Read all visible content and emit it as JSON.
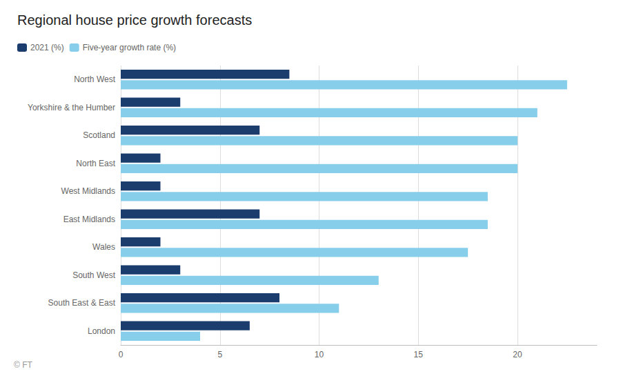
{
  "chart_data": {
    "type": "bar",
    "orientation": "horizontal",
    "title": "Regional house price growth forecasts",
    "categories": [
      "North West",
      "Yorkshire & the Humber",
      "Scotland",
      "North East",
      "West Midlands",
      "East Midlands",
      "Wales",
      "South West",
      "South East & East",
      "London"
    ],
    "series": [
      {
        "name": "2021 (%)",
        "color": "#1b3d6e",
        "values": [
          8.5,
          3.0,
          7.0,
          2.0,
          2.0,
          7.0,
          2.0,
          3.0,
          8.0,
          6.5
        ]
      },
      {
        "name": "Five-year growth rate (%)",
        "color": "#87ceeb",
        "values": [
          22.5,
          21.0,
          20.0,
          20.0,
          18.5,
          18.5,
          17.5,
          13.0,
          11.0,
          4.0
        ]
      }
    ],
    "xlim": [
      0,
      24
    ],
    "xticks": [
      0,
      5,
      10,
      15,
      20
    ],
    "grid": true,
    "legend": "top-left",
    "annotations": [
      "© FT"
    ]
  }
}
